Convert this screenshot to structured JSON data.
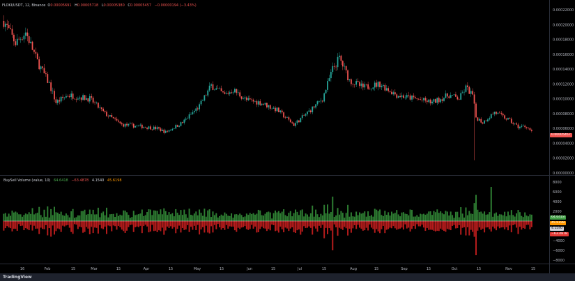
{
  "header": {
    "symbol": "FLOKI/USDT, 12, Binance",
    "open_label": "O",
    "open": "0.00005691",
    "high_label": "H",
    "high": "0.00005718",
    "low_label": "L",
    "low": "0.00005380",
    "close_label": "C",
    "close": "0.00005457",
    "change": "−0.00000194 (−3.43%)"
  },
  "indicator": {
    "title": "BuySell Volume (value, 10)",
    "v1": "64.6418",
    "v2": "−63.4878",
    "v3": "4.1540",
    "v4": "45.6198"
  },
  "footer": {
    "brand": "TradingView"
  },
  "colors": {
    "up": "#26a69a",
    "down": "#ef5350",
    "buy_volume": "#2e7d32",
    "sell_volume": "#b71c1c",
    "background": "#000000",
    "ma_line": "#ffffff"
  },
  "chart_data": [
    {
      "type": "candlestick",
      "xaxis_ticks": [
        "16",
        "Feb",
        "15",
        "Mar",
        "15",
        "Apr",
        "15",
        "May",
        "15",
        "Jun",
        "15",
        "Jul",
        "15",
        "Aug",
        "15",
        "Sep",
        "15",
        "Oct",
        "15",
        "Nov",
        "15"
      ],
      "yaxis_ticks": [
        "0.00022000",
        "0.00020000",
        "0.00018000",
        "0.00016000",
        "0.00014000",
        "0.00012000",
        "0.00010000",
        "0.00008000",
        "0.00006000",
        "0.00004000",
        "0.00002000",
        "0.00000000"
      ],
      "ylim": [
        0,
        0.00022
      ],
      "last_price": "0.00005457",
      "price_path": [
        [
          "01-05",
          0.000205
        ],
        [
          "01-12",
          0.000175
        ],
        [
          "01-18",
          0.00019
        ],
        [
          "01-25",
          0.00015
        ],
        [
          "02-01",
          0.00012
        ],
        [
          "02-05",
          9.5e-05
        ],
        [
          "02-12",
          0.000105
        ],
        [
          "02-25",
          0.0001
        ],
        [
          "03-05",
          8e-05
        ],
        [
          "03-15",
          6.5e-05
        ],
        [
          "03-25",
          6.3e-05
        ],
        [
          "04-05",
          6e-05
        ],
        [
          "04-10",
          5.5e-05
        ],
        [
          "04-20",
          6.8e-05
        ],
        [
          "04-30",
          9e-05
        ],
        [
          "05-07",
          0.000118
        ],
        [
          "05-15",
          0.000105
        ],
        [
          "05-20",
          0.000112
        ],
        [
          "05-28",
          9.8e-05
        ],
        [
          "06-05",
          9.5e-05
        ],
        [
          "06-15",
          8.5e-05
        ],
        [
          "06-25",
          6.5e-05
        ],
        [
          "07-05",
          8.5e-05
        ],
        [
          "07-12",
          0.0001
        ],
        [
          "07-18",
          0.00014
        ],
        [
          "07-22",
          0.000155
        ],
        [
          "07-28",
          0.000125
        ],
        [
          "08-05",
          0.000115
        ],
        [
          "08-15",
          0.00012
        ],
        [
          "08-25",
          0.000105
        ],
        [
          "09-05",
          0.0001
        ],
        [
          "09-15",
          9.5e-05
        ],
        [
          "09-25",
          0.000105
        ],
        [
          "10-01",
          0.0001
        ],
        [
          "10-05",
          0.000115
        ],
        [
          "10-09",
          0.000105
        ],
        [
          "10-11",
          7.5e-05
        ],
        [
          "10-15",
          6.8e-05
        ],
        [
          "10-22",
          8.2e-05
        ],
        [
          "10-30",
          7.2e-05
        ],
        [
          "11-05",
          6.2e-05
        ],
        [
          "11-10",
          6.3e-05
        ],
        [
          "11-13",
          5.5e-05
        ]
      ]
    },
    {
      "type": "bar",
      "title": "BuySell Volume (value, 10)",
      "yaxis_ticks": [
        "8000",
        "6000",
        "4000",
        "2000",
        "−4000",
        "−6000",
        "−8000"
      ],
      "ylim": [
        -8000,
        8000
      ]
    }
  ]
}
